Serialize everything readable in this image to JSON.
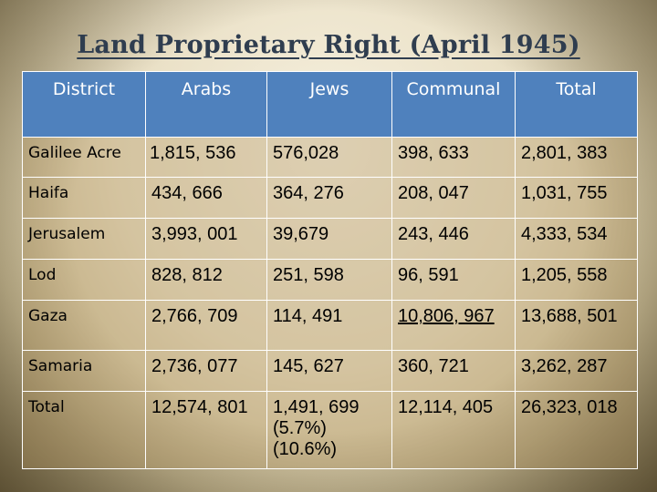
{
  "title": "Land Proprietary Right (April 1945)",
  "headers": [
    "District",
    "Arabs",
    "Jews",
    "Communal",
    "Total"
  ],
  "rows": [
    {
      "district": "Galilee Acre",
      "arabs": "1,815, 536",
      "jews": "576,028",
      "communal": "398, 633",
      "total": "2,801, 383"
    },
    {
      "district": "Haifa",
      "arabs": "434, 666",
      "jews": "364, 276",
      "communal": "208, 047",
      "total": "1,031, 755"
    },
    {
      "district": "Jerusalem",
      "arabs": "3,993, 001",
      "jews": "39,679",
      "communal": "243, 446",
      "total": "4,333, 534"
    },
    {
      "district": "Lod",
      "arabs": "828, 812",
      "jews": "251, 598",
      "communal": "96, 591",
      "total": "1,205, 558"
    },
    {
      "district": "Gaza",
      "arabs": "2,766, 709",
      "jews": "114, 491",
      "communal": "10,806, 967",
      "total": "13,688, 501"
    },
    {
      "district": "Samaria",
      "arabs": "2,736, 077",
      "jews": "145, 627",
      "communal": "360, 721",
      "total": "3,262, 287"
    },
    {
      "district": "Total",
      "arabs": "12,574, 801",
      "jews": "1,491, 699",
      "jews_note1": "(5.7%)",
      "jews_note2": "(10.6%)",
      "communal": "12,114, 405",
      "total": "26,323, 018"
    }
  ],
  "colors": {
    "header_bg": "#4f81bd",
    "title": "#2f3d4f",
    "cell_bg": "#d9c9a3"
  }
}
